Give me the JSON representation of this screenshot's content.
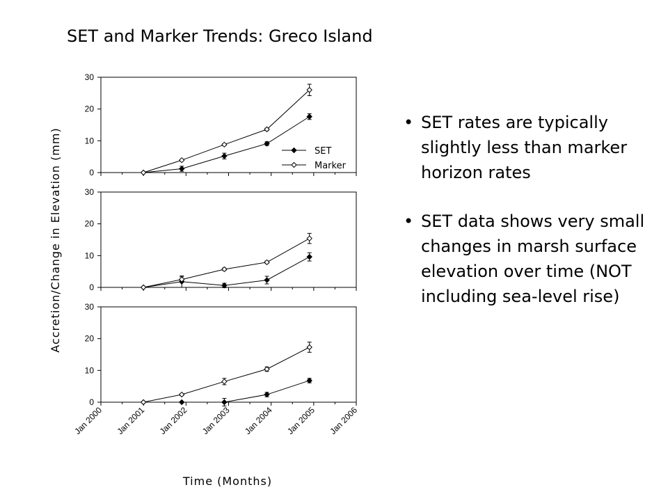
{
  "slide": {
    "title": "SET and Marker Trends: Greco Island",
    "bullets": [
      "SET rates are typically slightly less than marker horizon rates",
      "SET data shows very small changes in marsh surface elevation over time (NOT including sea-level rise)"
    ]
  },
  "chart_data": {
    "type": "line",
    "ylabel": "Accretion/Change in Elevation (mm)",
    "xlabel": "Time (Months)",
    "x_ticks": [
      "Jan 2000",
      "Jan 2001",
      "Jan 2002",
      "Jan 2003",
      "Jan 2004",
      "Jan 2005",
      "Jan 2006"
    ],
    "x_range": [
      2000,
      2006
    ],
    "y_range": [
      0,
      30
    ],
    "y_ticks": [
      0,
      10,
      20,
      30
    ],
    "legend": {
      "entries": [
        "SET",
        "Marker"
      ],
      "placement": "right"
    },
    "panels": [
      {
        "series": [
          {
            "name": "SET",
            "marker": "filled-diamond",
            "x": [
              2001.0,
              2001.9,
              2002.9,
              2003.9,
              2004.9
            ],
            "y": [
              0,
              1.2,
              5.2,
              9.1,
              17.6
            ],
            "err": [
              0,
              0.8,
              0.9,
              0.6,
              0.9
            ]
          },
          {
            "name": "Marker",
            "marker": "open-diamond",
            "x": [
              2001.0,
              2001.9,
              2002.9,
              2003.9,
              2004.9
            ],
            "y": [
              0,
              3.9,
              8.8,
              13.6,
              26.0
            ],
            "err": [
              0,
              0.3,
              0.3,
              0.4,
              1.8
            ]
          }
        ]
      },
      {
        "series": [
          {
            "name": "SET",
            "marker": "filled-diamond",
            "x": [
              2001.0,
              2001.9,
              2002.9,
              2003.9,
              2004.9
            ],
            "y": [
              0,
              1.8,
              0.6,
              2.3,
              9.6
            ],
            "err": [
              0,
              1.8,
              0.7,
              1.2,
              1.3
            ]
          },
          {
            "name": "Marker",
            "marker": "open-diamond",
            "x": [
              2001.0,
              2001.9,
              2002.9,
              2003.9,
              2004.9
            ],
            "y": [
              0,
              2.5,
              5.7,
              7.9,
              15.4
            ],
            "err": [
              0,
              0.8,
              0.4,
              0.4,
              1.6
            ]
          }
        ]
      },
      {
        "series": [
          {
            "name": "SET",
            "marker": "filled-diamond",
            "x": [
              2001.0,
              2001.9,
              2002.9,
              2003.9,
              2004.9
            ],
            "y": [
              0,
              0,
              0,
              2.4,
              6.8
            ],
            "err": [
              0,
              0,
              1.2,
              0.7,
              0.7
            ]
          },
          {
            "name": "Marker",
            "marker": "open-diamond",
            "x": [
              2001.0,
              2001.9,
              2002.9,
              2003.9,
              2004.9
            ],
            "y": [
              0,
              2.4,
              6.5,
              10.4,
              17.3
            ],
            "err": [
              0,
              0.3,
              1.0,
              0.7,
              1.6
            ]
          }
        ]
      }
    ]
  }
}
